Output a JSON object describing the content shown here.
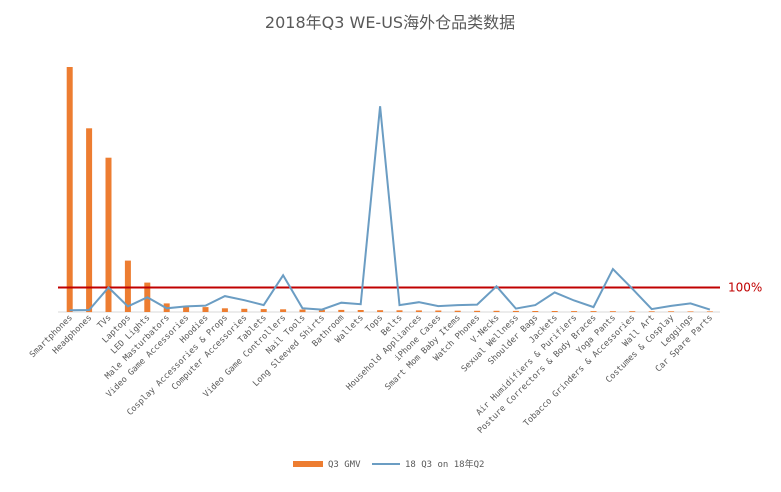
{
  "chart_data": {
    "type": "bar",
    "title": "2018年Q3 WE-US海外仓品类数据",
    "categories": [
      "Smartphones",
      "Headphones",
      "TVs",
      "Laptops",
      "LED Lights",
      "Male Masturbators",
      "Video Game Accessories",
      "Hoodies",
      "Cosplay Accessories & Props",
      "Computer Accessories",
      "Tablets",
      "Video Game Controllers",
      "Nail Tools",
      "Long Sleeved Shirts",
      "Bathroom",
      "Wallets",
      "Tops",
      "Belts",
      "Household Appliances",
      "iPhone Cases",
      "Smart Mom Baby Items",
      "Watch Phones",
      "V-Necks",
      "Sexual Wellness",
      "Shoulder Bags",
      "Jackets",
      "Air Humidifiers & Purifiers",
      "Posture Correctors & Body Braces",
      "Yoga Pants",
      "Tobacco Grinders & Accessories",
      "Wall Art",
      "Costumes & Cosplay",
      "Leggings",
      "Car Spare Parts"
    ],
    "series": [
      {
        "name": "Q3 GMV",
        "type": "bar",
        "color": "#ed7d31",
        "values": [
          100,
          75,
          63,
          21,
          12,
          3.5,
          2.5,
          2,
          1.5,
          1.3,
          1.2,
          1.1,
          1,
          0.9,
          0.85,
          0.8,
          0.75,
          0.7,
          0.65,
          0.6,
          0.55,
          0.5,
          0.48,
          0.45,
          0.42,
          0.4,
          0.38,
          0.36,
          0.34,
          0.32,
          0.3,
          0.28,
          0.26,
          0.24
        ]
      },
      {
        "name": "18 Q3 on 18年Q2",
        "type": "line",
        "color": "#6b9dc3",
        "values": [
          7,
          8,
          100,
          23,
          60,
          15,
          23,
          26,
          65,
          48,
          28,
          150,
          15,
          10,
          38,
          32,
          840,
          28,
          40,
          24,
          28,
          30,
          105,
          14,
          28,
          80,
          47,
          20,
          175,
          95,
          12,
          25,
          35,
          10
        ]
      }
    ],
    "reference_line": {
      "value": 100,
      "label": "100%",
      "color": "#c00000"
    },
    "line_ylim": [
      0,
      1000
    ],
    "bar_ylim": [
      0,
      100
    ],
    "legend": [
      "Q3 GMV",
      "18 Q3 on 18年Q2"
    ],
    "legend_position": "bottom"
  }
}
